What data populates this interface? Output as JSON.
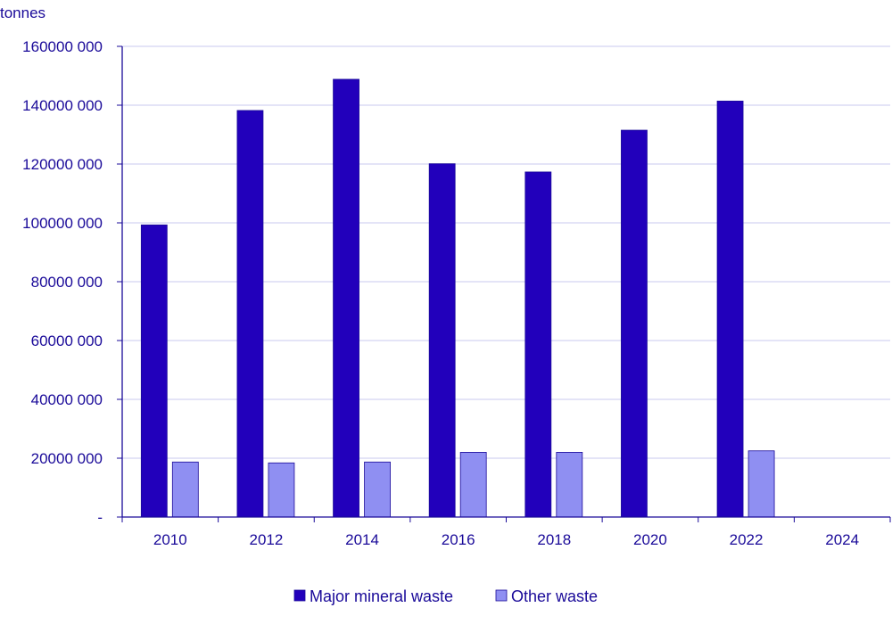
{
  "chart_data": {
    "type": "bar",
    "unit_label": "tonnes",
    "categories": [
      "2010",
      "2012",
      "2014",
      "2016",
      "2018",
      "2020",
      "2022",
      "2024"
    ],
    "series": [
      {
        "name": "Major mineral waste",
        "color": "#2200bb",
        "values": [
          99300000,
          138200000,
          148800000,
          120100000,
          117300000,
          131500000,
          141400000,
          null
        ]
      },
      {
        "name": "Other waste",
        "color": "#8f8ff2",
        "values": [
          18700000,
          18400000,
          18700000,
          22000000,
          22000000,
          null,
          22500000,
          null
        ]
      }
    ],
    "ylim": [
      0,
      160000000
    ],
    "yticks": [
      0,
      20000000,
      40000000,
      60000000,
      80000000,
      100000000,
      120000000,
      140000000,
      160000000
    ],
    "ytick_labels": [
      "-",
      "20000 000",
      "40000 000",
      "60000 000",
      "80000 000",
      "100000 000",
      "120000 000",
      "140000 000",
      "160000 000"
    ],
    "grid": true,
    "legend_position": "bottom-center"
  }
}
